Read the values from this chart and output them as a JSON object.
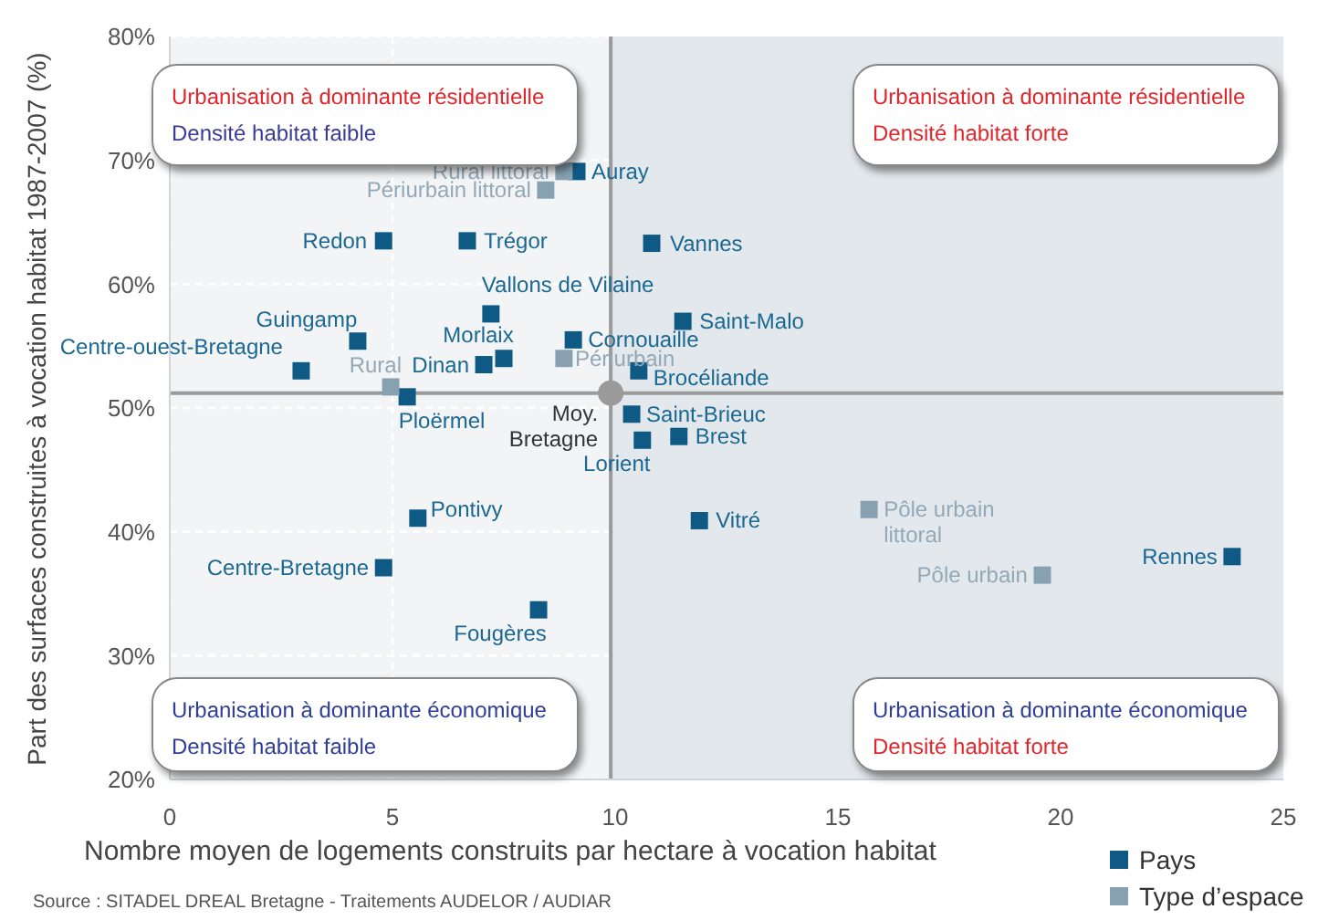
{
  "chart_data": {
    "type": "scatter",
    "xlabel": "Nombre moyen de logements construits par hectare à vocation habitat",
    "ylabel": "Part des surfaces construites à vocation habitat 1987-2007 (%)",
    "xlim": [
      0,
      25
    ],
    "xticks": [
      0,
      5,
      10,
      15,
      20,
      25
    ],
    "ylim": [
      20,
      80
    ],
    "yticks": [
      {
        "value": 20,
        "label": "20%"
      },
      {
        "value": 30,
        "label": "30%"
      },
      {
        "value": 40,
        "label": "40%"
      },
      {
        "value": 50,
        "label": "50%"
      },
      {
        "value": 60,
        "label": "60%"
      },
      {
        "value": 70,
        "label": "70%"
      },
      {
        "value": 80,
        "label": "80%"
      }
    ],
    "grid": true,
    "legend": "bottom right",
    "marker": "square",
    "series": [
      {
        "name": "Pays",
        "color": "#0f5a85",
        "x": [
          9.14,
          4.8,
          6.68,
          10.82,
          7.21,
          11.52,
          4.22,
          9.06,
          7.5,
          7.05,
          2.95,
          10.53,
          5.33,
          10.37,
          11.43,
          10.61,
          5.57,
          11.89,
          23.85,
          4.8,
          8.28
        ],
        "values": [
          69.1,
          63.5,
          63.5,
          63.3,
          57.6,
          57.0,
          55.4,
          55.5,
          54.0,
          53.5,
          53.0,
          53.0,
          50.9,
          49.5,
          47.7,
          47.4,
          41.1,
          40.9,
          38.0,
          37.1,
          33.7
        ]
      },
      {
        "name": "Type d’espace",
        "color": "#87a1b2",
        "x": [
          8.85,
          8.44,
          8.85,
          4.96,
          15.7,
          19.59
        ],
        "values": [
          69.1,
          67.6,
          54.0,
          51.7,
          41.8,
          36.5
        ]
      },
      {
        "color": "#9a9a9a",
        "marker": "circle",
        "x": [
          9.9
        ],
        "values": [
          51.2
        ]
      }
    ],
    "ref_lines": [
      {
        "axis": "x",
        "value": 9.9,
        "color": "#9a9a9a"
      },
      {
        "axis": "y",
        "value": 51.2,
        "color": "#9a9a9a"
      }
    ],
    "bands": [
      {
        "axis": "x",
        "from": 9.9,
        "to": 25,
        "color": "#e3e8ec"
      }
    ],
    "annotations": [
      "Urbanisation à dominante résidentielle",
      "Densité habitat faible",
      "Urbanisation à dominante résidentielle",
      "Densité habitat forte",
      "Urbanisation à dominante économique",
      "Densité habitat faible",
      "Urbanisation à dominante économique",
      "Densité habitat forte",
      "Source : SITADEL DREAL Bretagne - Traitements AUDELOR / AUDIAR",
      {
        "text": "Auray",
        "x": 9.14,
        "y": 69.1
      },
      {
        "text": "Rural littoral",
        "x": 8.85,
        "y": 69.1
      },
      {
        "text": "Périurbain littoral",
        "x": 8.44,
        "y": 67.6
      },
      {
        "text": "Redon",
        "x": 4.8,
        "y": 63.5
      },
      {
        "text": "Trégor",
        "x": 6.68,
        "y": 63.5
      },
      {
        "text": "Vannes",
        "x": 10.82,
        "y": 63.3
      },
      {
        "text": "Vallons de Vilaine",
        "x": 7.21,
        "y": 57.6
      },
      {
        "text": "Saint-Malo",
        "x": 11.52,
        "y": 57.0
      },
      {
        "text": "Guingamp",
        "x": 4.22,
        "y": 55.4
      },
      {
        "text": "Cornouaille",
        "x": 9.06,
        "y": 55.5
      },
      {
        "text": "Morlaix",
        "x": 7.5,
        "y": 54.0
      },
      {
        "text": "Dinan",
        "x": 7.05,
        "y": 53.5
      },
      {
        "text": "Périurbain",
        "x": 8.85,
        "y": 54.0
      },
      {
        "text": "Centre-ouest-Bretagne",
        "x": 2.95,
        "y": 53.0
      },
      {
        "text": "Brocéliande",
        "x": 10.53,
        "y": 53.0
      },
      {
        "text": "Rural",
        "x": 4.96,
        "y": 51.7
      },
      {
        "text": "Ploërmel",
        "x": 5.33,
        "y": 50.9
      },
      {
        "text": "Saint-Brieuc",
        "x": 10.37,
        "y": 49.5
      },
      {
        "text": "Brest",
        "x": 11.43,
        "y": 47.7
      },
      {
        "text": "Lorient",
        "x": 10.61,
        "y": 47.4
      },
      {
        "text": "Pontivy",
        "x": 5.57,
        "y": 41.1
      },
      {
        "text": "Vitré",
        "x": 11.89,
        "y": 40.9
      },
      {
        "text": "Pôle urbain littoral",
        "x": 15.7,
        "y": 41.8
      },
      {
        "text": "Rennes",
        "x": 23.85,
        "y": 38.0
      },
      {
        "text": "Pôle urbain",
        "x": 19.59,
        "y": 36.5
      },
      {
        "text": "Centre-Bretagne",
        "x": 4.8,
        "y": 37.1
      },
      {
        "text": "Fougères",
        "x": 8.28,
        "y": 33.7
      },
      {
        "text": "Moy. Bretagne",
        "x": 9.9,
        "y": 51.2
      }
    ]
  }
}
